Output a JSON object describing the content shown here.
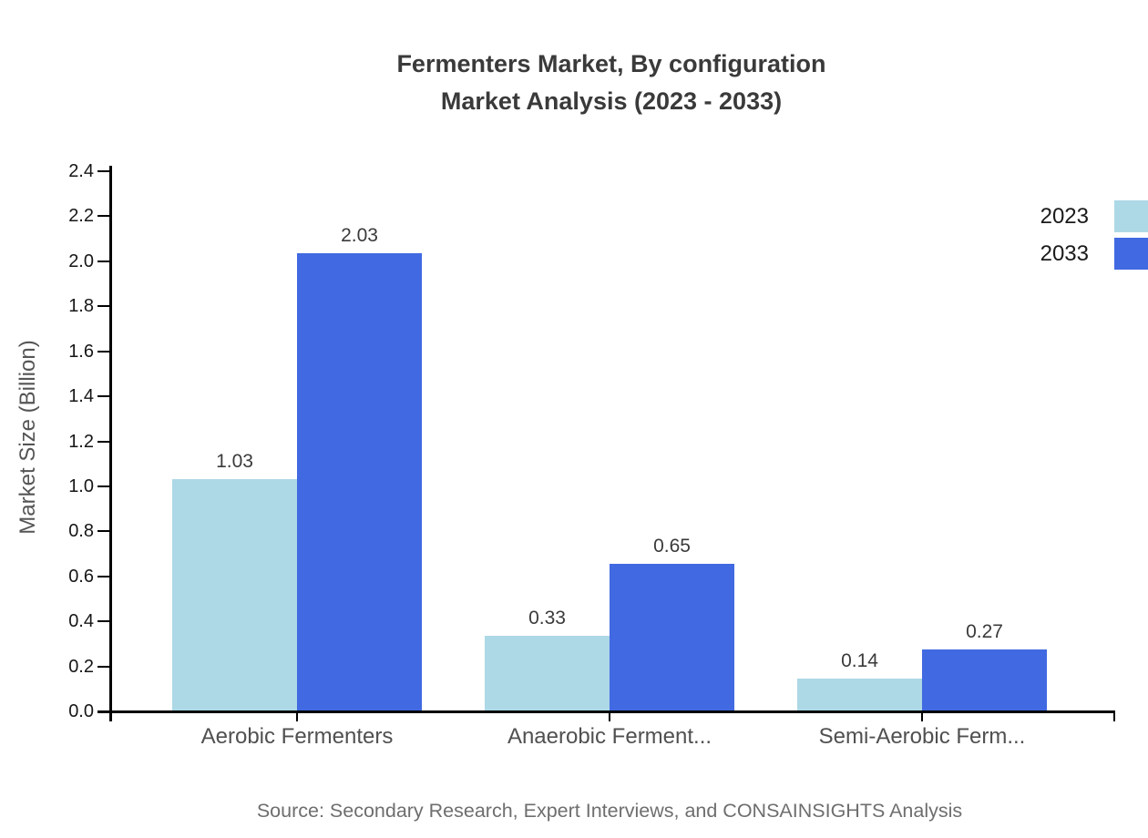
{
  "title": {
    "line1": "Fermenters Market, By configuration",
    "line2": "Market Analysis (2023 - 2033)"
  },
  "source": "Source: Secondary Research, Expert Interviews, and CONSAINSIGHTS Analysis",
  "chart_data": {
    "type": "bar",
    "title": "Fermenters Market, By configuration Market Analysis (2023 - 2033)",
    "categories": [
      "Aerobic Fermenters",
      "Anaerobic Ferment...",
      "Semi-Aerobic Ferm..."
    ],
    "series": [
      {
        "name": "2023",
        "color": "#ADD8E6",
        "values": [
          1.03,
          0.33,
          0.14
        ]
      },
      {
        "name": "2033",
        "color": "#4169E1",
        "values": [
          2.03,
          0.65,
          0.27
        ]
      }
    ],
    "xlabel": "",
    "ylabel": "Market Size (Billion)",
    "ylim": [
      0,
      2.4
    ],
    "yticks": [
      "0.0",
      "0.2",
      "0.4",
      "0.6",
      "0.8",
      "1.0",
      "1.2",
      "1.4",
      "1.6",
      "1.8",
      "2.0",
      "2.2",
      "2.4"
    ],
    "value_labels": [
      "1.03",
      "2.03",
      "0.33",
      "0.65",
      "0.14",
      "0.27"
    ],
    "grid": false,
    "legend_position": "top-right",
    "axis_color": "#000000"
  }
}
